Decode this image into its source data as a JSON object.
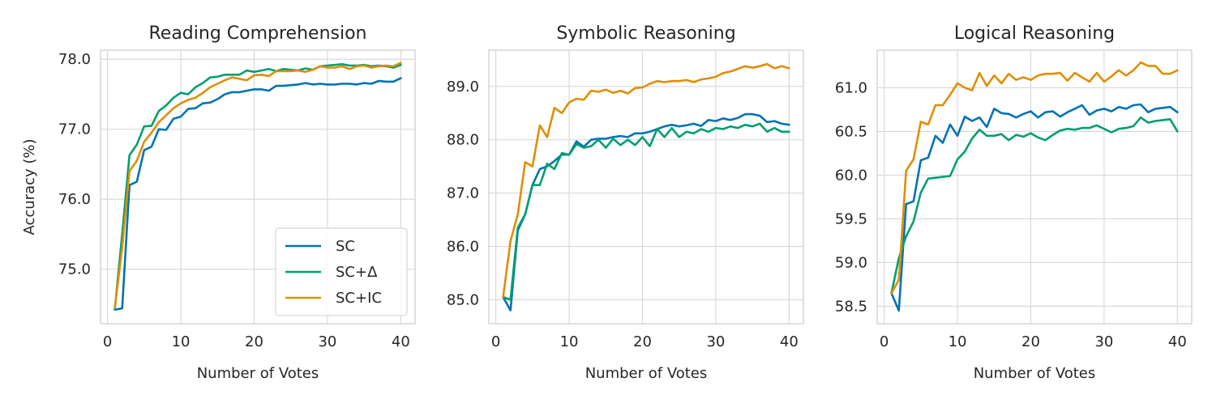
{
  "chart_data": [
    {
      "type": "line",
      "title": "Reading Comprehension",
      "xlabel": "Number of Votes",
      "ylabel": "Accuracy (%)",
      "xlim": [
        -0.95,
        41.95
      ],
      "ylim": [
        74.22,
        78.13
      ],
      "xticks": [
        0,
        10,
        20,
        30,
        40
      ],
      "xtick_labels": [
        "0",
        "10",
        "20",
        "30",
        "40"
      ],
      "yticks": [
        75,
        76,
        77,
        78
      ],
      "ytick_labels": [
        "75.0",
        "76.0",
        "77.0",
        "78.0"
      ],
      "grid": true,
      "legend": "lower-right",
      "x": [
        1,
        2,
        3,
        4,
        5,
        6,
        7,
        8,
        9,
        10,
        11,
        12,
        13,
        14,
        15,
        16,
        17,
        18,
        19,
        20,
        21,
        22,
        23,
        24,
        25,
        26,
        27,
        28,
        29,
        30,
        31,
        32,
        33,
        34,
        35,
        36,
        37,
        38,
        39,
        40
      ],
      "series": [
        {
          "name": "SC",
          "color": "#0173b2",
          "values": [
            74.42,
            74.44,
            76.2,
            76.25,
            76.7,
            76.75,
            77.0,
            76.99,
            77.15,
            77.18,
            77.29,
            77.3,
            77.37,
            77.38,
            77.43,
            77.5,
            77.53,
            77.53,
            77.55,
            77.57,
            77.57,
            77.55,
            77.62,
            77.62,
            77.63,
            77.64,
            77.66,
            77.64,
            77.65,
            77.64,
            77.64,
            77.65,
            77.65,
            77.64,
            77.66,
            77.65,
            77.69,
            77.68,
            77.68,
            77.73
          ]
        },
        {
          "name": "SC+Δ",
          "color": "#029e73",
          "values": [
            74.42,
            75.5,
            76.63,
            76.78,
            77.04,
            77.05,
            77.26,
            77.34,
            77.45,
            77.52,
            77.5,
            77.6,
            77.66,
            77.74,
            77.75,
            77.78,
            77.78,
            77.78,
            77.84,
            77.82,
            77.84,
            77.86,
            77.83,
            77.86,
            77.85,
            77.84,
            77.87,
            77.85,
            77.9,
            77.91,
            77.92,
            77.93,
            77.91,
            77.91,
            77.92,
            77.9,
            77.91,
            77.9,
            77.88,
            77.92
          ]
        },
        {
          "name": "SC+IC",
          "color": "#de8f05",
          "values": [
            74.45,
            75.3,
            76.4,
            76.55,
            76.82,
            76.95,
            77.1,
            77.2,
            77.3,
            77.37,
            77.42,
            77.45,
            77.52,
            77.6,
            77.65,
            77.7,
            77.74,
            77.72,
            77.7,
            77.77,
            77.78,
            77.76,
            77.83,
            77.83,
            77.83,
            77.84,
            77.82,
            77.85,
            77.9,
            77.88,
            77.88,
            77.9,
            77.86,
            77.9,
            77.91,
            77.88,
            77.9,
            77.91,
            77.9,
            77.95
          ]
        }
      ]
    },
    {
      "type": "line",
      "title": "Symbolic Reasoning",
      "xlabel": "Number of Votes",
      "ylabel": "",
      "xlim": [
        -0.95,
        41.95
      ],
      "ylim": [
        84.55,
        89.68
      ],
      "xticks": [
        0,
        10,
        20,
        30,
        40
      ],
      "xtick_labels": [
        "0",
        "10",
        "20",
        "30",
        "40"
      ],
      "yticks": [
        85,
        86,
        87,
        88,
        89
      ],
      "ytick_labels": [
        "85.0",
        "86.0",
        "87.0",
        "88.0",
        "89.0"
      ],
      "grid": true,
      "x": [
        1,
        2,
        3,
        4,
        5,
        6,
        7,
        8,
        9,
        10,
        11,
        12,
        13,
        14,
        15,
        16,
        17,
        18,
        19,
        20,
        21,
        22,
        23,
        24,
        25,
        26,
        27,
        28,
        29,
        30,
        31,
        32,
        33,
        34,
        35,
        36,
        37,
        38,
        39,
        40
      ],
      "series": [
        {
          "name": "SC",
          "color": "#0173b2",
          "values": [
            85.05,
            84.8,
            86.3,
            86.6,
            87.15,
            87.45,
            87.5,
            87.6,
            87.72,
            87.72,
            87.97,
            87.87,
            88.0,
            88.02,
            88.02,
            88.05,
            88.07,
            88.05,
            88.12,
            88.12,
            88.15,
            88.2,
            88.25,
            88.28,
            88.25,
            88.27,
            88.3,
            88.26,
            88.37,
            88.35,
            88.4,
            88.37,
            88.41,
            88.48,
            88.48,
            88.45,
            88.33,
            88.35,
            88.3,
            88.28
          ]
        },
        {
          "name": "SC+Δ",
          "color": "#029e73",
          "values": [
            85.05,
            85.0,
            86.35,
            86.6,
            87.15,
            87.15,
            87.55,
            87.45,
            87.75,
            87.72,
            87.92,
            87.85,
            87.88,
            88.0,
            87.85,
            88.02,
            87.9,
            88.0,
            87.9,
            88.05,
            87.88,
            88.2,
            88.05,
            88.22,
            88.05,
            88.15,
            88.12,
            88.2,
            88.15,
            88.22,
            88.2,
            88.25,
            88.22,
            88.28,
            88.25,
            88.3,
            88.15,
            88.22,
            88.15,
            88.15
          ]
        },
        {
          "name": "SC+IC",
          "color": "#de8f05",
          "values": [
            85.05,
            86.1,
            86.6,
            87.58,
            87.5,
            88.27,
            88.05,
            88.6,
            88.5,
            88.7,
            88.77,
            88.75,
            88.92,
            88.9,
            88.94,
            88.88,
            88.92,
            88.87,
            88.97,
            88.98,
            89.05,
            89.1,
            89.08,
            89.1,
            89.1,
            89.12,
            89.08,
            89.13,
            89.15,
            89.18,
            89.25,
            89.28,
            89.33,
            89.38,
            89.35,
            89.38,
            89.42,
            89.34,
            89.38,
            89.34
          ]
        }
      ]
    },
    {
      "type": "line",
      "title": "Logical Reasoning",
      "xlabel": "Number of Votes",
      "ylabel": "",
      "xlim": [
        -0.95,
        41.95
      ],
      "ylim": [
        58.3,
        61.43
      ],
      "xticks": [
        0,
        10,
        20,
        30,
        40
      ],
      "xtick_labels": [
        "0",
        "10",
        "20",
        "30",
        "40"
      ],
      "yticks": [
        58.5,
        59,
        59.5,
        60,
        60.5,
        61
      ],
      "ytick_labels": [
        "58.5",
        "59.0",
        "59.5",
        "60.0",
        "60.5",
        "61.0"
      ],
      "grid": true,
      "x": [
        1,
        2,
        3,
        4,
        5,
        6,
        7,
        8,
        9,
        10,
        11,
        12,
        13,
        14,
        15,
        16,
        17,
        18,
        19,
        20,
        21,
        22,
        23,
        24,
        25,
        26,
        27,
        28,
        29,
        30,
        31,
        32,
        33,
        34,
        35,
        36,
        37,
        38,
        39,
        40
      ],
      "series": [
        {
          "name": "SC",
          "color": "#0173b2",
          "values": [
            58.65,
            58.45,
            59.67,
            59.7,
            60.17,
            60.2,
            60.45,
            60.37,
            60.58,
            60.45,
            60.67,
            60.62,
            60.66,
            60.55,
            60.76,
            60.71,
            60.7,
            60.66,
            60.7,
            60.73,
            60.66,
            60.72,
            60.73,
            60.67,
            60.72,
            60.76,
            60.8,
            60.69,
            60.74,
            60.76,
            60.73,
            60.78,
            60.76,
            60.8,
            60.81,
            60.72,
            60.76,
            60.77,
            60.78,
            60.72
          ]
        },
        {
          "name": "SC+Δ",
          "color": "#029e73",
          "values": [
            58.65,
            59.05,
            59.3,
            59.47,
            59.8,
            59.96,
            59.97,
            59.98,
            59.99,
            60.18,
            60.27,
            60.42,
            60.52,
            60.45,
            60.45,
            60.47,
            60.4,
            60.46,
            60.44,
            60.48,
            60.43,
            60.4,
            60.46,
            60.51,
            60.53,
            60.52,
            60.54,
            60.54,
            60.57,
            60.53,
            60.49,
            60.53,
            60.54,
            60.56,
            60.66,
            60.6,
            60.62,
            60.63,
            60.64,
            60.5
          ]
        },
        {
          "name": "SC+IC",
          "color": "#de8f05",
          "values": [
            58.65,
            58.8,
            60.05,
            60.18,
            60.61,
            60.58,
            60.8,
            60.8,
            60.92,
            61.05,
            61.0,
            60.97,
            61.17,
            61.02,
            61.14,
            61.05,
            61.16,
            61.09,
            61.12,
            61.09,
            61.14,
            61.16,
            61.16,
            61.17,
            61.08,
            61.17,
            61.12,
            61.07,
            61.17,
            61.07,
            61.13,
            61.2,
            61.14,
            61.2,
            61.29,
            61.25,
            61.25,
            61.16,
            61.16,
            61.2
          ]
        }
      ]
    }
  ]
}
